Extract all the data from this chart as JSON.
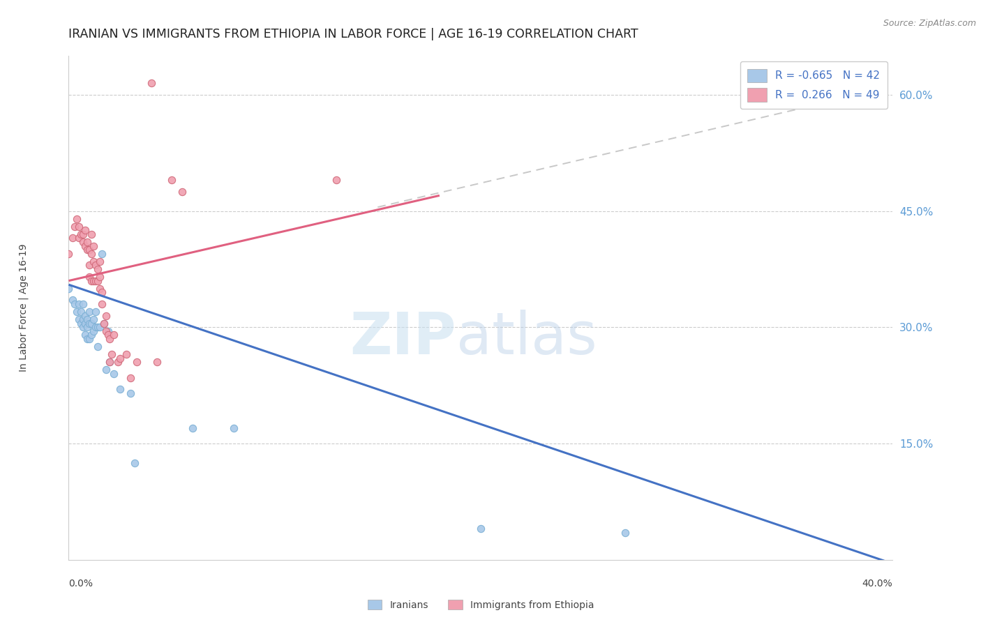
{
  "title": "IRANIAN VS IMMIGRANTS FROM ETHIOPIA IN LABOR FORCE | AGE 16-19 CORRELATION CHART",
  "source": "Source: ZipAtlas.com",
  "ylabel": "In Labor Force | Age 16-19",
  "xlim": [
    0.0,
    0.4
  ],
  "ylim": [
    0.0,
    0.65
  ],
  "yticks": [
    0.15,
    0.3,
    0.45,
    0.6
  ],
  "ytick_labels": [
    "15.0%",
    "30.0%",
    "45.0%",
    "60.0%"
  ],
  "xtick_labels": [
    "0.0%",
    "40.0%"
  ],
  "background_color": "#ffffff",
  "grid_color": "#cccccc",
  "scatter_iranians": {
    "color": "#a8c8e8",
    "edge_color": "#7aafd4",
    "x": [
      0.0,
      0.002,
      0.003,
      0.004,
      0.005,
      0.005,
      0.006,
      0.006,
      0.007,
      0.007,
      0.007,
      0.008,
      0.008,
      0.008,
      0.009,
      0.009,
      0.009,
      0.01,
      0.01,
      0.01,
      0.011,
      0.011,
      0.012,
      0.012,
      0.013,
      0.013,
      0.014,
      0.014,
      0.015,
      0.016,
      0.017,
      0.018,
      0.019,
      0.02,
      0.022,
      0.025,
      0.03,
      0.032,
      0.06,
      0.08,
      0.2,
      0.27
    ],
    "y": [
      0.35,
      0.335,
      0.33,
      0.32,
      0.33,
      0.31,
      0.32,
      0.305,
      0.33,
      0.31,
      0.3,
      0.315,
      0.305,
      0.29,
      0.31,
      0.3,
      0.285,
      0.32,
      0.305,
      0.285,
      0.305,
      0.29,
      0.31,
      0.295,
      0.32,
      0.3,
      0.3,
      0.275,
      0.3,
      0.395,
      0.305,
      0.245,
      0.295,
      0.255,
      0.24,
      0.22,
      0.215,
      0.125,
      0.17,
      0.17,
      0.04,
      0.035
    ]
  },
  "scatter_ethiopia": {
    "color": "#f0a0b0",
    "edge_color": "#d06878",
    "x": [
      0.0,
      0.002,
      0.003,
      0.004,
      0.005,
      0.005,
      0.006,
      0.007,
      0.007,
      0.008,
      0.008,
      0.009,
      0.009,
      0.01,
      0.01,
      0.01,
      0.011,
      0.011,
      0.011,
      0.012,
      0.012,
      0.012,
      0.013,
      0.013,
      0.014,
      0.014,
      0.015,
      0.015,
      0.015,
      0.016,
      0.016,
      0.017,
      0.018,
      0.018,
      0.019,
      0.02,
      0.02,
      0.021,
      0.022,
      0.024,
      0.025,
      0.028,
      0.03,
      0.033,
      0.04,
      0.043,
      0.05,
      0.055,
      0.13
    ],
    "y": [
      0.395,
      0.415,
      0.43,
      0.44,
      0.43,
      0.415,
      0.42,
      0.42,
      0.41,
      0.425,
      0.405,
      0.41,
      0.4,
      0.4,
      0.38,
      0.365,
      0.42,
      0.395,
      0.36,
      0.405,
      0.385,
      0.36,
      0.38,
      0.36,
      0.375,
      0.36,
      0.385,
      0.365,
      0.35,
      0.345,
      0.33,
      0.305,
      0.315,
      0.295,
      0.29,
      0.285,
      0.255,
      0.265,
      0.29,
      0.255,
      0.26,
      0.265,
      0.235,
      0.255,
      0.615,
      0.255,
      0.49,
      0.475,
      0.49
    ]
  },
  "trendline_iranians": {
    "color": "#4472c4",
    "x": [
      0.0,
      0.4
    ],
    "y": [
      0.355,
      -0.005
    ]
  },
  "trendline_ethiopia_solid": {
    "color": "#e06080",
    "x": [
      0.0,
      0.18
    ],
    "y": [
      0.36,
      0.47
    ]
  },
  "trendline_ethiopia_dash": {
    "color": "#c8c8c8",
    "x": [
      0.15,
      0.4
    ],
    "y": [
      0.455,
      0.61
    ]
  },
  "legend_iran_label": "R = -0.665   N = 42",
  "legend_eth_label": "R =  0.266   N = 49",
  "legend_iran_color": "#a8c8e8",
  "legend_eth_color": "#f0a0b0",
  "bottom_label_iran": "Iranians",
  "bottom_label_eth": "Immigrants from Ethiopia",
  "watermark_zip": "ZIP",
  "watermark_atlas": "atlas"
}
